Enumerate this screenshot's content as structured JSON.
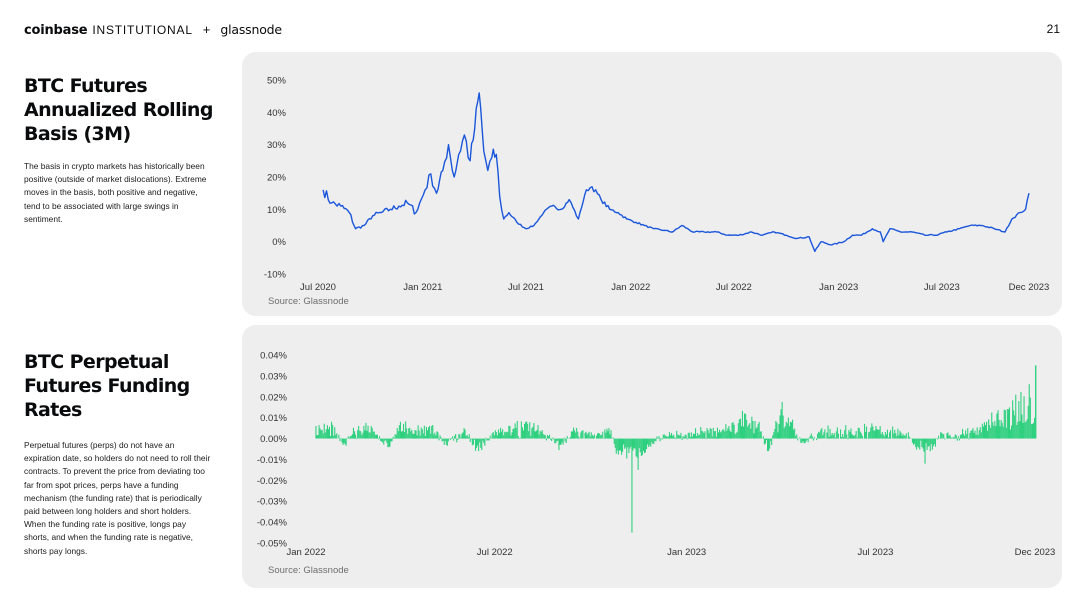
{
  "header": {
    "brand_coinbase": "coinbase",
    "brand_institutional": "INSTITUTIONAL",
    "brand_plus": "+",
    "brand_glassnode": "glassnode",
    "page_number": "21"
  },
  "section1": {
    "title": "BTC Futures Annualized Rolling Basis (3M)",
    "description": "The basis in crypto markets has historically been positive (outside of market dislocations). Extreme moves in the basis, both positive and negative, tend to be associated with large swings in sentiment."
  },
  "section2": {
    "title": "BTC Perpetual Futures Funding Rates",
    "description": "Perpetual futures (perps) do not have an expiration date, so holders do not need to roll their contracts. To prevent the price from deviating too far from spot prices, perps have a funding mechanism (the funding rate) that is periodically paid between long holders and short holders. When the funding rate is positive, longs pay shorts, and when the funding rate is negative, shorts pay longs."
  },
  "colors": {
    "line": "#1a56db",
    "bars": "#2fd07f",
    "panel": "#eeeeee"
  },
  "chart_data": [
    {
      "type": "line",
      "source": "Source: Glassnode",
      "x_ticks": [
        "Jul 2020",
        "Jan 2021",
        "Jul 2021",
        "Jan 2022",
        "Jul 2022",
        "Jan 2023",
        "Jul 2023",
        "Dec 2023"
      ],
      "y_ticks": [
        "50%",
        "40%",
        "30%",
        "20%",
        "10%",
        "0%",
        "-10%"
      ],
      "ylim": [
        -10,
        50
      ],
      "xlim": [
        "2020-07-01",
        "2023-12-01"
      ],
      "series": [
        {
          "values": [
            [
              "2020-07-10",
              16
            ],
            [
              "2020-07-25",
              12
            ],
            [
              "2020-08-10",
              11
            ],
            [
              "2020-08-25",
              9
            ],
            [
              "2020-09-05",
              4
            ],
            [
              "2020-09-20",
              5
            ],
            [
              "2020-10-05",
              8
            ],
            [
              "2020-10-20",
              9
            ],
            [
              "2020-11-05",
              10
            ],
            [
              "2020-11-20",
              11
            ],
            [
              "2020-12-05",
              12
            ],
            [
              "2020-12-20",
              9
            ],
            [
              "2021-01-05",
              16
            ],
            [
              "2021-01-15",
              21
            ],
            [
              "2021-01-25",
              15
            ],
            [
              "2021-02-05",
              22
            ],
            [
              "2021-02-15",
              30
            ],
            [
              "2021-02-25",
              20
            ],
            [
              "2021-03-05",
              27
            ],
            [
              "2021-03-15",
              33
            ],
            [
              "2021-03-25",
              25
            ],
            [
              "2021-04-02",
              35
            ],
            [
              "2021-04-10",
              46
            ],
            [
              "2021-04-18",
              28
            ],
            [
              "2021-04-25",
              22
            ],
            [
              "2021-05-02",
              26
            ],
            [
              "2021-05-10",
              27
            ],
            [
              "2021-05-16",
              14
            ],
            [
              "2021-05-23",
              7
            ],
            [
              "2021-06-01",
              9
            ],
            [
              "2021-06-15",
              6
            ],
            [
              "2021-07-01",
              4
            ],
            [
              "2021-07-15",
              5
            ],
            [
              "2021-08-01",
              9
            ],
            [
              "2021-08-15",
              11
            ],
            [
              "2021-09-01",
              10
            ],
            [
              "2021-09-15",
              13
            ],
            [
              "2021-10-01",
              7
            ],
            [
              "2021-10-15",
              16
            ],
            [
              "2021-10-25",
              17
            ],
            [
              "2021-11-10",
              13
            ],
            [
              "2021-11-25",
              10
            ],
            [
              "2021-12-10",
              9
            ],
            [
              "2021-12-25",
              7
            ],
            [
              "2022-01-10",
              6
            ],
            [
              "2022-01-25",
              5
            ],
            [
              "2022-02-10",
              4
            ],
            [
              "2022-03-01",
              3.5
            ],
            [
              "2022-03-15",
              3
            ],
            [
              "2022-04-01",
              5
            ],
            [
              "2022-04-20",
              3
            ],
            [
              "2022-05-10",
              3
            ],
            [
              "2022-06-01",
              3
            ],
            [
              "2022-06-20",
              2
            ],
            [
              "2022-07-10",
              2
            ],
            [
              "2022-08-01",
              3
            ],
            [
              "2022-08-20",
              2
            ],
            [
              "2022-09-10",
              3
            ],
            [
              "2022-10-01",
              2
            ],
            [
              "2022-10-20",
              1
            ],
            [
              "2022-11-10",
              1.5
            ],
            [
              "2022-11-20",
              -3
            ],
            [
              "2022-12-01",
              0
            ],
            [
              "2022-12-20",
              -1
            ],
            [
              "2023-01-10",
              0
            ],
            [
              "2023-01-25",
              2
            ],
            [
              "2023-02-10",
              2
            ],
            [
              "2023-03-01",
              4
            ],
            [
              "2023-03-15",
              3
            ],
            [
              "2023-03-20",
              0
            ],
            [
              "2023-04-01",
              4
            ],
            [
              "2023-04-20",
              3
            ],
            [
              "2023-05-10",
              3
            ],
            [
              "2023-06-01",
              2
            ],
            [
              "2023-06-20",
              2
            ],
            [
              "2023-07-10",
              3
            ],
            [
              "2023-08-01",
              4
            ],
            [
              "2023-08-20",
              5
            ],
            [
              "2023-09-10",
              5
            ],
            [
              "2023-10-01",
              4
            ],
            [
              "2023-10-20",
              3
            ],
            [
              "2023-11-01",
              7
            ],
            [
              "2023-11-15",
              9
            ],
            [
              "2023-11-25",
              10
            ],
            [
              "2023-12-01",
              15
            ]
          ]
        }
      ]
    },
    {
      "type": "bar",
      "source": "Source: Glassnode",
      "x_ticks": [
        "Jan 2022",
        "Jul 2022",
        "Jan 2023",
        "Jul 2023",
        "Dec 2023"
      ],
      "y_ticks": [
        "0.04%",
        "0.03%",
        "0.02%",
        "0.01%",
        "0.00%",
        "-0.01%",
        "-0.02%",
        "-0.03%",
        "-0.04%",
        "-0.05%"
      ],
      "ylim": [
        -0.05,
        0.04
      ],
      "xlim": [
        "2022-01-01",
        "2023-12-01"
      ],
      "series": [
        {
          "values": [
            [
              "2022-01-10",
              0.006
            ],
            [
              "2022-01-25",
              0.008
            ],
            [
              "2022-02-05",
              -0.003
            ],
            [
              "2022-02-20",
              0.006
            ],
            [
              "2022-03-05",
              0.005
            ],
            [
              "2022-03-20",
              -0.004
            ],
            [
              "2022-04-01",
              0.008
            ],
            [
              "2022-04-15",
              0.004
            ],
            [
              "2022-05-01",
              0.006
            ],
            [
              "2022-05-15",
              -0.003
            ],
            [
              "2022-06-01",
              0.005
            ],
            [
              "2022-06-15",
              -0.006
            ],
            [
              "2022-07-01",
              0.004
            ],
            [
              "2022-07-15",
              0.006
            ],
            [
              "2022-08-01",
              0.007
            ],
            [
              "2022-08-15",
              0.004
            ],
            [
              "2022-09-01",
              -0.003
            ],
            [
              "2022-09-15",
              0.004
            ],
            [
              "2022-10-01",
              0.003
            ],
            [
              "2022-10-20",
              0.004
            ],
            [
              "2022-11-09",
              -0.045
            ],
            [
              "2022-11-15",
              -0.015
            ],
            [
              "2022-11-25",
              -0.004
            ],
            [
              "2022-12-10",
              0.002
            ],
            [
              "2023-01-05",
              0.003
            ],
            [
              "2023-01-20",
              0.005
            ],
            [
              "2023-02-10",
              0.006
            ],
            [
              "2023-02-25",
              0.012
            ],
            [
              "2023-03-10",
              0.007
            ],
            [
              "2023-03-20",
              -0.006
            ],
            [
              "2023-04-01",
              0.014
            ],
            [
              "2023-04-10",
              0.008
            ],
            [
              "2023-04-20",
              -0.002
            ],
            [
              "2023-05-10",
              0.005
            ],
            [
              "2023-06-01",
              0.004
            ],
            [
              "2023-06-15",
              0.005
            ],
            [
              "2023-07-01",
              0.006
            ],
            [
              "2023-07-15",
              0.004
            ],
            [
              "2023-08-01",
              0.003
            ],
            [
              "2023-08-17",
              -0.012
            ],
            [
              "2023-09-01",
              0.003
            ],
            [
              "2023-09-15",
              0.002
            ],
            [
              "2023-10-01",
              0.004
            ],
            [
              "2023-10-15",
              0.008
            ],
            [
              "2023-10-25",
              0.012
            ],
            [
              "2023-11-05",
              0.014
            ],
            [
              "2023-11-15",
              0.018
            ],
            [
              "2023-11-25",
              0.026
            ],
            [
              "2023-12-01",
              0.035
            ]
          ]
        }
      ]
    }
  ]
}
